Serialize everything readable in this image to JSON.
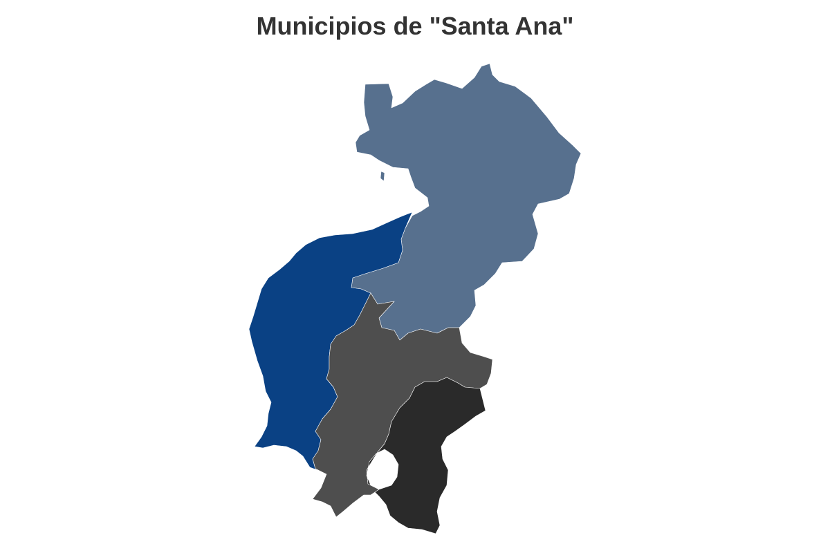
{
  "map": {
    "title": "Municipios de \"Santa Ana\""
  },
  "regions": [
    {
      "id": "north",
      "color": "#57708e"
    },
    {
      "id": "west",
      "color": "#0a4184"
    },
    {
      "id": "center",
      "color": "#4e4e4e"
    },
    {
      "id": "south",
      "color": "#2a2a2a"
    }
  ]
}
